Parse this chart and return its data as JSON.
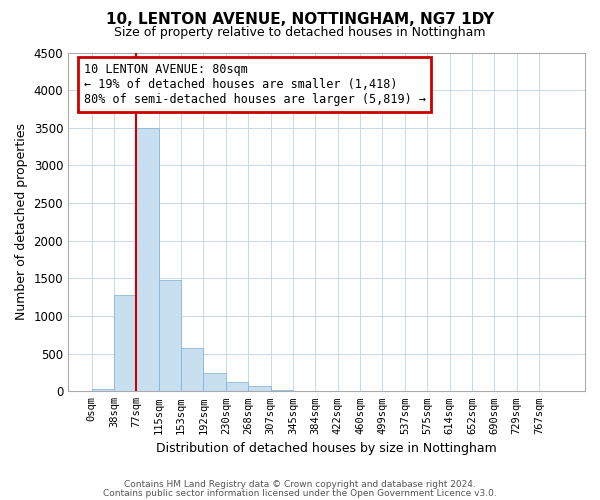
{
  "title": "10, LENTON AVENUE, NOTTINGHAM, NG7 1DY",
  "subtitle": "Size of property relative to detached houses in Nottingham",
  "xlabel": "Distribution of detached houses by size in Nottingham",
  "ylabel": "Number of detached properties",
  "bin_labels": [
    "0sqm",
    "38sqm",
    "77sqm",
    "115sqm",
    "153sqm",
    "192sqm",
    "230sqm",
    "268sqm",
    "307sqm",
    "345sqm",
    "384sqm",
    "422sqm",
    "460sqm",
    "499sqm",
    "537sqm",
    "575sqm",
    "614sqm",
    "652sqm",
    "690sqm",
    "729sqm",
    "767sqm"
  ],
  "bar_heights": [
    30,
    1280,
    3500,
    1480,
    575,
    245,
    130,
    75,
    20,
    5,
    2,
    0,
    0,
    0,
    0,
    0,
    0,
    0,
    0,
    0,
    0
  ],
  "bar_color": "#c8dff0",
  "bar_edge_color": "#7aafd4",
  "vline_x_index": 2,
  "vline_color": "#cc0000",
  "ylim": [
    0,
    4500
  ],
  "yticks": [
    0,
    500,
    1000,
    1500,
    2000,
    2500,
    3000,
    3500,
    4000,
    4500
  ],
  "annotation_title": "10 LENTON AVENUE: 80sqm",
  "annotation_line1": "← 19% of detached houses are smaller (1,418)",
  "annotation_line2": "80% of semi-detached houses are larger (5,819) →",
  "annotation_box_color": "#ffffff",
  "annotation_box_edge": "#cc0000",
  "footnote1": "Contains HM Land Registry data © Crown copyright and database right 2024.",
  "footnote2": "Contains public sector information licensed under the Open Government Licence v3.0.",
  "bg_color": "#ffffff",
  "grid_color": "#c8d8ec"
}
